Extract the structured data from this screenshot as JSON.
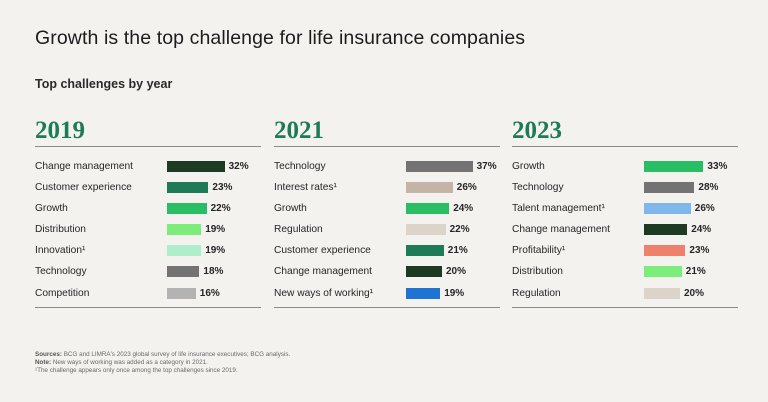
{
  "title": "Growth is the top challenge for life insurance companies",
  "subtitle": "Top challenges by year",
  "chart_data": [
    {
      "type": "bar",
      "title": "2019",
      "categories": [
        "Change management",
        "Customer experience",
        "Growth",
        "Distribution",
        "Innovation¹",
        "Technology",
        "Competition"
      ],
      "values": [
        32,
        23,
        22,
        19,
        19,
        18,
        16
      ],
      "value_labels": [
        "32%",
        "23%",
        "22%",
        "19%",
        "19%",
        "18%",
        "16%"
      ],
      "colors": [
        "#1d3b23",
        "#1e7a57",
        "#29bd64",
        "#7ced7a",
        "#aeeeca",
        "#737373",
        "#b3b3b3"
      ]
    },
    {
      "type": "bar",
      "title": "2021",
      "categories": [
        "Technology",
        "Interest rates¹",
        "Growth",
        "Regulation",
        "Customer experience",
        "Change management",
        "New ways of working¹"
      ],
      "values": [
        37,
        26,
        24,
        22,
        21,
        20,
        19
      ],
      "value_labels": [
        "37%",
        "26%",
        "24%",
        "22%",
        "21%",
        "20%",
        "19%"
      ],
      "colors": [
        "#737373",
        "#c5b4a6",
        "#29bd64",
        "#dcd3c9",
        "#1e7a57",
        "#1d3b23",
        "#1f73d3"
      ]
    },
    {
      "type": "bar",
      "title": "2023",
      "categories": [
        "Growth",
        "Technology",
        "Talent management¹",
        "Change management",
        "Profitability¹",
        "Distribution",
        "Regulation"
      ],
      "values": [
        33,
        28,
        26,
        24,
        23,
        21,
        20
      ],
      "value_labels": [
        "33%",
        "28%",
        "26%",
        "24%",
        "23%",
        "21%",
        "20%"
      ],
      "colors": [
        "#29bd64",
        "#737373",
        "#7fb6ec",
        "#1d3b23",
        "#ed816c",
        "#7ced7a",
        "#dcd3c9"
      ]
    }
  ],
  "notes": {
    "sources_label": "Sources:",
    "sources_text": "BCG and LIMRA's 2023 global survey of life insurance executives; BCG analysis.",
    "note_label": "Note:",
    "note_text": "New ways of working was added as a category in 2021.",
    "footnote": "¹The challenge appears only once among the top challenges since 2019."
  }
}
